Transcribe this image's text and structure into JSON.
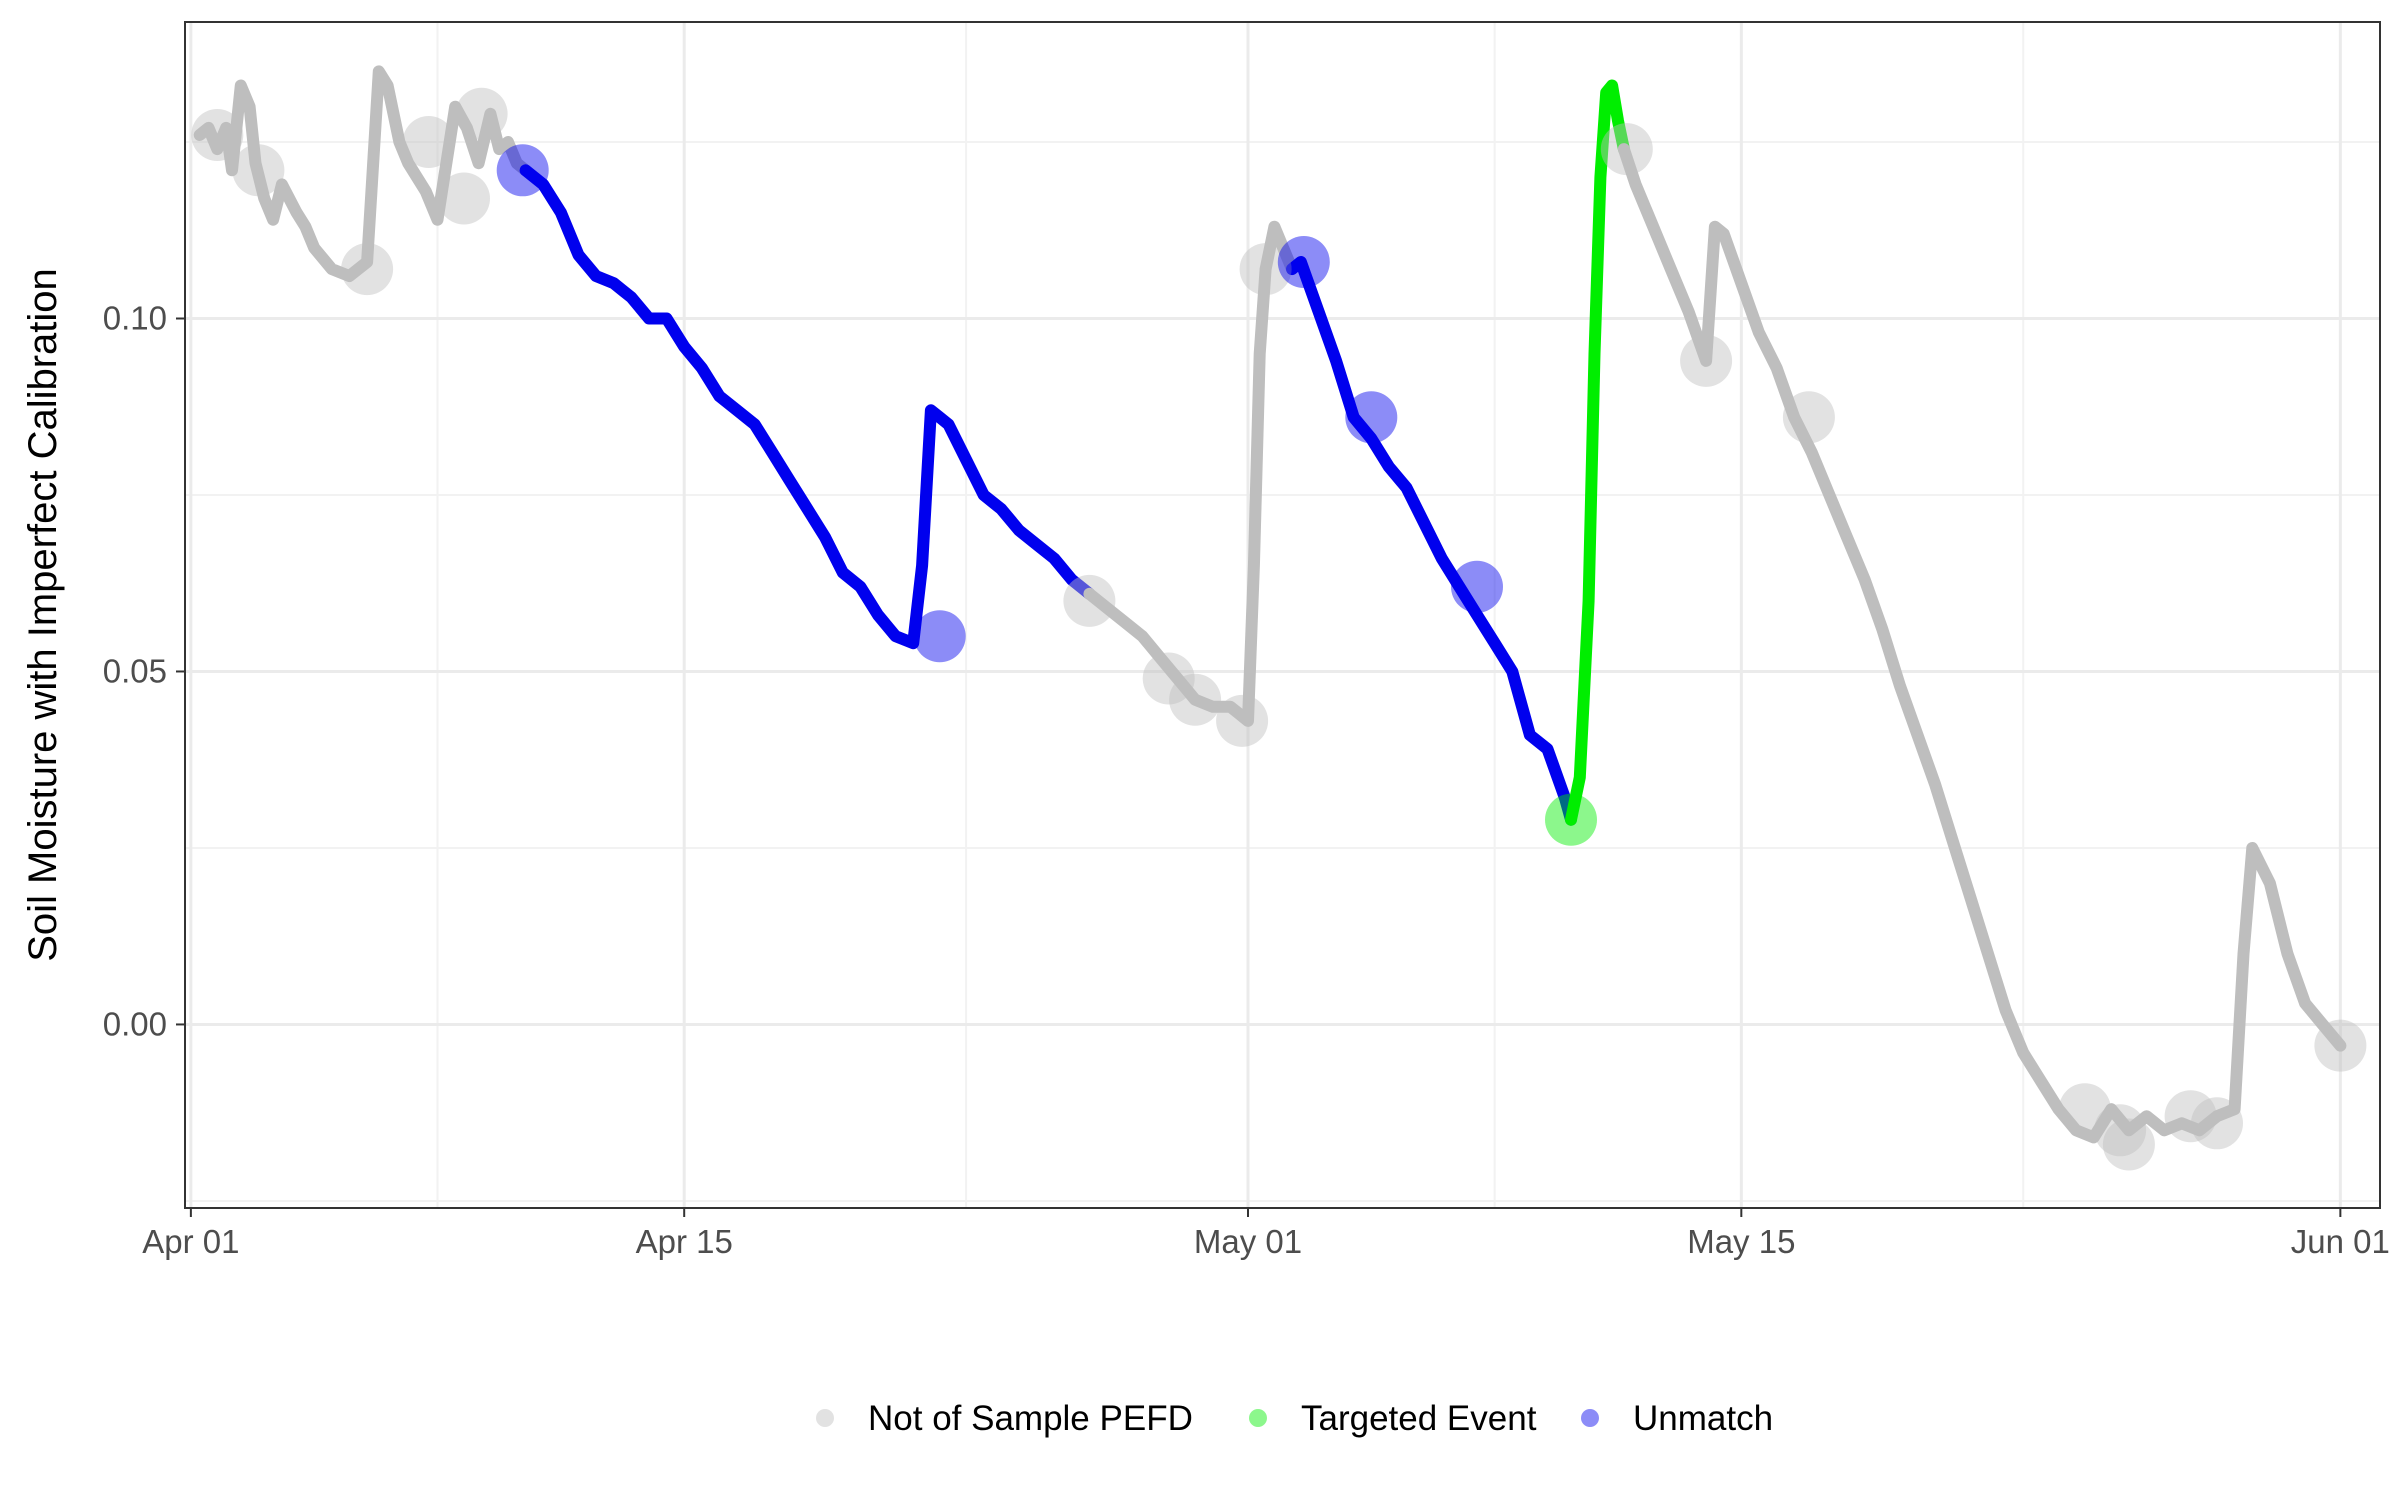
{
  "chart_data": {
    "type": "line",
    "title": "",
    "xlabel": "",
    "ylabel": "Soil Moisture with Imperfect Calibration",
    "xlim": [
      "2024-03-31T20:00",
      "2024-06-02T03:00"
    ],
    "ylim": [
      -0.026,
      0.142
    ],
    "x_ticks": [
      {
        "label": "Apr 01",
        "value": "2024-04-01"
      },
      {
        "label": "Apr 15",
        "value": "2024-04-15"
      },
      {
        "label": "May 01",
        "value": "2024-05-01"
      },
      {
        "label": "May 15",
        "value": "2024-05-15"
      },
      {
        "label": "Jun 01",
        "value": "2024-06-01"
      }
    ],
    "x_minor_ticks": [
      "2024-04-08",
      "2024-04-23",
      "2024-05-08",
      "2024-05-23"
    ],
    "y_ticks": [
      {
        "label": "0.00",
        "value": 0.0
      },
      {
        "label": "0.05",
        "value": 0.05
      },
      {
        "label": "0.10",
        "value": 0.1
      }
    ],
    "y_minor_ticks": [
      -0.025,
      0.025,
      0.075,
      0.125
    ],
    "grid": true,
    "legend_position": "bottom",
    "legend": [
      {
        "label": "Not of Sample PEFD",
        "color": "#bebebe"
      },
      {
        "label": "Targeted Event",
        "color": "#00ee00"
      },
      {
        "label": "Unmatch",
        "color": "#0000ee"
      }
    ],
    "series": [
      {
        "category": "Not of Sample PEFD",
        "color": "#bebebe",
        "x": [
          "2024-04-01T06:00",
          "2024-04-01T12:00",
          "2024-04-01T18:00",
          "2024-04-02T00:00",
          "2024-04-02T04:00",
          "2024-04-02T10:00",
          "2024-04-02T16:00",
          "2024-04-02T20:00",
          "2024-04-03T02:00",
          "2024-04-03T08:00",
          "2024-04-03T14:00",
          "2024-04-04T00:00",
          "2024-04-04T06:00",
          "2024-04-04T12:00",
          "2024-04-05T00:00",
          "2024-04-05T12:00",
          "2024-04-06T00:00",
          "2024-04-06T08:00",
          "2024-04-06T14:00",
          "2024-04-06T22:00",
          "2024-04-07T04:00",
          "2024-04-07T10:00",
          "2024-04-07T16:00",
          "2024-04-08T00:00",
          "2024-04-08T12:00",
          "2024-04-08T20:00",
          "2024-04-09T04:00",
          "2024-04-09T12:00",
          "2024-04-09T18:00",
          "2024-04-10T00:00",
          "2024-04-10T06:00",
          "2024-04-10T12:00"
        ],
        "y": [
          0.126,
          0.127,
          0.124,
          0.127,
          0.121,
          0.133,
          0.13,
          0.122,
          0.117,
          0.114,
          0.119,
          0.115,
          0.113,
          0.11,
          0.107,
          0.106,
          0.108,
          0.135,
          0.133,
          0.125,
          0.122,
          0.12,
          0.118,
          0.114,
          0.13,
          0.127,
          0.122,
          0.129,
          0.124,
          0.125,
          0.122,
          0.121
        ]
      },
      {
        "category": "Unmatch",
        "color": "#0000ee",
        "x": [
          "2024-04-10T12:00",
          "2024-04-11T00:00",
          "2024-04-11T12:00",
          "2024-04-12T00:00",
          "2024-04-12T12:00",
          "2024-04-13T00:00",
          "2024-04-13T06:00",
          "2024-04-13T12:00",
          "2024-04-14T00:00",
          "2024-04-14T12:00",
          "2024-04-15T00:00",
          "2024-04-15T12:00",
          "2024-04-16T00:00",
          "2024-04-16T12:00",
          "2024-04-17T00:00",
          "2024-04-17T12:00",
          "2024-04-18T00:00",
          "2024-04-18T12:00",
          "2024-04-19T00:00",
          "2024-04-19T12:00",
          "2024-04-20T00:00",
          "2024-04-20T12:00",
          "2024-04-21T00:00",
          "2024-04-21T12:00",
          "2024-04-21T18:00",
          "2024-04-22T00:00",
          "2024-04-22T06:00",
          "2024-04-22T12:00",
          "2024-04-23T00:00",
          "2024-04-23T12:00",
          "2024-04-24T00:00",
          "2024-04-24T12:00",
          "2024-04-25T00:00",
          "2024-04-25T12:00",
          "2024-04-26T00:00",
          "2024-04-26T12:00"
        ],
        "y": [
          0.121,
          0.119,
          0.115,
          0.109,
          0.106,
          0.105,
          0.104,
          0.103,
          0.1,
          0.1,
          0.096,
          0.093,
          0.089,
          0.087,
          0.085,
          0.081,
          0.077,
          0.073,
          0.069,
          0.064,
          0.062,
          0.058,
          0.055,
          0.054,
          0.065,
          0.087,
          0.086,
          0.085,
          0.08,
          0.075,
          0.073,
          0.07,
          0.068,
          0.066,
          0.063,
          0.061
        ]
      },
      {
        "category": "Not of Sample PEFD",
        "color": "#bebebe",
        "x": [
          "2024-04-26T12:00",
          "2024-04-27T00:00",
          "2024-04-27T12:00",
          "2024-04-28T00:00",
          "2024-04-28T12:00",
          "2024-04-29T00:00",
          "2024-04-29T12:00",
          "2024-04-30T00:00",
          "2024-04-30T12:00",
          "2024-04-30T18:00",
          "2024-05-01T00:00",
          "2024-05-01T04:00",
          "2024-05-01T08:00",
          "2024-05-01T12:00",
          "2024-05-01T18:00",
          "2024-05-02T00:00",
          "2024-05-02T06:00"
        ],
        "y": [
          0.061,
          0.059,
          0.057,
          0.055,
          0.052,
          0.049,
          0.046,
          0.045,
          0.045,
          0.044,
          0.043,
          0.065,
          0.095,
          0.107,
          0.113,
          0.11,
          0.107
        ]
      },
      {
        "category": "Unmatch",
        "color": "#0000ee",
        "x": [
          "2024-05-02T06:00",
          "2024-05-02T12:00",
          "2024-05-03T00:00",
          "2024-05-03T12:00",
          "2024-05-04T00:00",
          "2024-05-04T12:00",
          "2024-05-05T00:00",
          "2024-05-05T12:00",
          "2024-05-06T00:00",
          "2024-05-06T12:00",
          "2024-05-07T00:00",
          "2024-05-07T12:00",
          "2024-05-08T00:00",
          "2024-05-08T12:00",
          "2024-05-09T00:00",
          "2024-05-09T12:00",
          "2024-05-10T00:00",
          "2024-05-10T04:00"
        ],
        "y": [
          0.107,
          0.108,
          0.101,
          0.094,
          0.086,
          0.083,
          0.079,
          0.076,
          0.071,
          0.066,
          0.062,
          0.058,
          0.054,
          0.05,
          0.041,
          0.039,
          0.032,
          0.029
        ]
      },
      {
        "category": "Targeted Event",
        "color": "#00ee00",
        "x": [
          "2024-05-10T04:00",
          "2024-05-10T10:00",
          "2024-05-10T16:00",
          "2024-05-10T20:00",
          "2024-05-11T00:00",
          "2024-05-11T04:00",
          "2024-05-11T08:00",
          "2024-05-11T12:00",
          "2024-05-11T16:00"
        ],
        "y": [
          0.029,
          0.035,
          0.06,
          0.095,
          0.12,
          0.132,
          0.133,
          0.128,
          0.124
        ]
      },
      {
        "category": "Not of Sample PEFD",
        "color": "#bebebe",
        "x": [
          "2024-05-11T16:00",
          "2024-05-12T00:00",
          "2024-05-12T12:00",
          "2024-05-13T00:00",
          "2024-05-13T12:00",
          "2024-05-14T00:00",
          "2024-05-14T06:00",
          "2024-05-14T12:00",
          "2024-05-15T00:00",
          "2024-05-15T12:00",
          "2024-05-16T00:00",
          "2024-05-16T12:00",
          "2024-05-17T00:00",
          "2024-05-17T12:00",
          "2024-05-18T00:00",
          "2024-05-18T12:00",
          "2024-05-19T00:00",
          "2024-05-19T12:00",
          "2024-05-20T00:00",
          "2024-05-20T12:00",
          "2024-05-21T00:00",
          "2024-05-21T12:00",
          "2024-05-22T00:00",
          "2024-05-22T12:00",
          "2024-05-23T00:00",
          "2024-05-23T12:00",
          "2024-05-24T00:00",
          "2024-05-24T12:00",
          "2024-05-25T00:00",
          "2024-05-25T12:00",
          "2024-05-26T00:00",
          "2024-05-26T12:00",
          "2024-05-27T00:00",
          "2024-05-27T12:00",
          "2024-05-28T00:00",
          "2024-05-28T12:00",
          "2024-05-29T00:00",
          "2024-05-29T06:00",
          "2024-05-29T12:00",
          "2024-05-30T00:00",
          "2024-05-30T12:00",
          "2024-05-31T00:00",
          "2024-05-31T12:00",
          "2024-06-01T00:00"
        ],
        "y": [
          0.124,
          0.119,
          0.113,
          0.107,
          0.101,
          0.094,
          0.113,
          0.112,
          0.105,
          0.098,
          0.093,
          0.086,
          0.081,
          0.075,
          0.069,
          0.063,
          0.056,
          0.048,
          0.041,
          0.034,
          0.026,
          0.018,
          0.01,
          0.002,
          -0.004,
          -0.008,
          -0.012,
          -0.015,
          -0.016,
          -0.012,
          -0.015,
          -0.013,
          -0.015,
          -0.014,
          -0.015,
          -0.013,
          -0.012,
          0.01,
          0.025,
          0.02,
          0.01,
          0.003,
          0.0,
          -0.003
        ]
      }
    ],
    "markers": [
      {
        "category": "Not of Sample PEFD",
        "color": "#bebebe",
        "x": [
          "2024-04-01T18:00",
          "2024-04-02T22:00",
          "2024-04-06T00:00",
          "2024-04-07T18:00",
          "2024-04-08T18:00",
          "2024-04-09T06:00",
          "2024-04-26T12:00",
          "2024-04-28T18:00",
          "2024-04-29T12:00",
          "2024-04-30T20:00",
          "2024-05-01T12:00",
          "2024-05-11T18:00",
          "2024-05-14T00:00",
          "2024-05-16T22:00",
          "2024-05-24T18:00",
          "2024-05-25T18:00",
          "2024-05-26T00:00",
          "2024-05-27T18:00",
          "2024-05-28T12:00",
          "2024-06-01T00:00"
        ],
        "y": [
          0.126,
          0.121,
          0.107,
          0.125,
          0.117,
          0.129,
          0.06,
          0.049,
          0.046,
          0.043,
          0.107,
          0.124,
          0.094,
          0.086,
          -0.012,
          -0.015,
          -0.017,
          -0.013,
          -0.014,
          -0.003
        ]
      },
      {
        "category": "Unmatch",
        "color": "#0000ee",
        "x": [
          "2024-04-10T10:00",
          "2024-04-22T06:00",
          "2024-05-02T14:00",
          "2024-05-04T12:00",
          "2024-05-07T12:00"
        ],
        "y": [
          0.121,
          0.055,
          0.108,
          0.086,
          0.062
        ]
      },
      {
        "category": "Targeted Event",
        "color": "#00ee00",
        "x": [
          "2024-05-10T04:00"
        ],
        "y": [
          0.029
        ]
      }
    ]
  }
}
